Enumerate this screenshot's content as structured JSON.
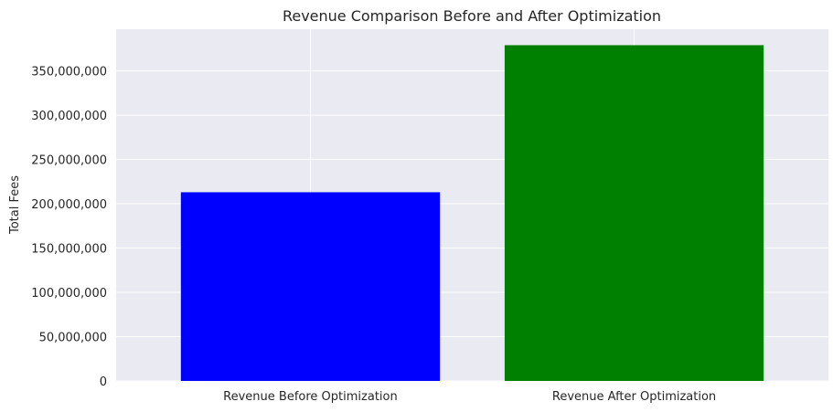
{
  "chart_data": {
    "type": "bar",
    "title": "Revenue Comparison Before and After Optimization",
    "xlabel": "",
    "ylabel": "Total Fees",
    "categories": [
      "Revenue Before Optimization",
      "Revenue After Optimization"
    ],
    "values": [
      213000000,
      379000000
    ],
    "colors": [
      "#0000ff",
      "#008000"
    ],
    "ylim": [
      0,
      397000000
    ],
    "yticks": [
      0,
      50000000,
      100000000,
      150000000,
      200000000,
      250000000,
      300000000,
      350000000
    ],
    "ytick_labels": [
      "0",
      "50,000,000",
      "100,000,000",
      "150,000,000",
      "200,000,000",
      "250,000,000",
      "300,000,000",
      "350,000,000"
    ],
    "grid": true,
    "background": "#eaeaf2"
  }
}
